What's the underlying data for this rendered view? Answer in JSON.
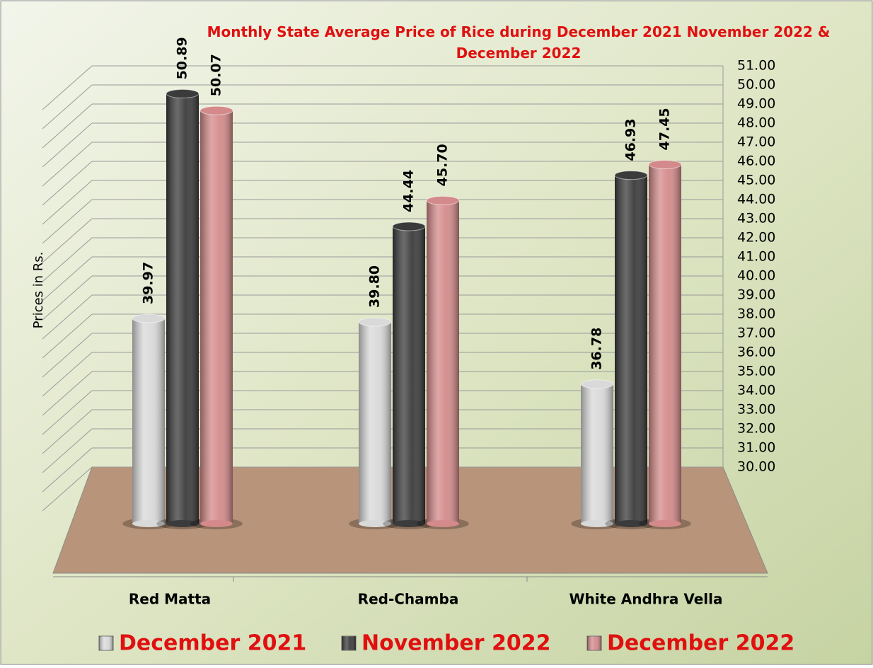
{
  "chart_data": {
    "type": "bar",
    "title": "Monthly State Average Price of Rice during  December 2021  November 2022  & December 2022",
    "y_label": "Prices in Rs.",
    "categories": [
      "Red Matta",
      "Red-Chamba",
      "White Andhra Vella"
    ],
    "series": [
      {
        "name": "December 2021",
        "color": "#d9d9d9",
        "values": [
          39.97,
          39.8,
          36.78
        ],
        "value_labels": [
          "39.97",
          "39.80",
          "36.78"
        ]
      },
      {
        "name": "November 2022",
        "color": "#3b3b3b",
        "values": [
          50.89,
          44.44,
          46.93
        ],
        "value_labels": [
          "50.89",
          "44.44",
          "46.93"
        ]
      },
      {
        "name": "December 2022",
        "color": "#d48a8a",
        "values": [
          50.07,
          45.7,
          47.45
        ],
        "value_labels": [
          "50.07",
          "45.70",
          "47.45"
        ]
      }
    ],
    "ylim": [
      30,
      51
    ],
    "yticks": [
      {
        "value": 30,
        "label": "30.00"
      },
      {
        "value": 31,
        "label": "31.00"
      },
      {
        "value": 32,
        "label": "32.00"
      },
      {
        "value": 33,
        "label": "33.00"
      },
      {
        "value": 34,
        "label": "34.00"
      },
      {
        "value": 35,
        "label": "35.00"
      },
      {
        "value": 36,
        "label": "36.00"
      },
      {
        "value": 37,
        "label": "37.00"
      },
      {
        "value": 38,
        "label": "38.00"
      },
      {
        "value": 39,
        "label": "39.00"
      },
      {
        "value": 40,
        "label": "40.00"
      },
      {
        "value": 41,
        "label": "41.00"
      },
      {
        "value": 42,
        "label": "42.00"
      },
      {
        "value": 43,
        "label": "43.00"
      },
      {
        "value": 44,
        "label": "44.00"
      },
      {
        "value": 45,
        "label": "45.00"
      },
      {
        "value": 46,
        "label": "46.00"
      },
      {
        "value": 47,
        "label": "47.00"
      },
      {
        "value": 48,
        "label": "48.00"
      },
      {
        "value": 49,
        "label": "49.00"
      },
      {
        "value": 50,
        "label": "50.00"
      },
      {
        "value": 51,
        "label": "51.00"
      }
    ],
    "grid": true,
    "legend": "bottom"
  }
}
